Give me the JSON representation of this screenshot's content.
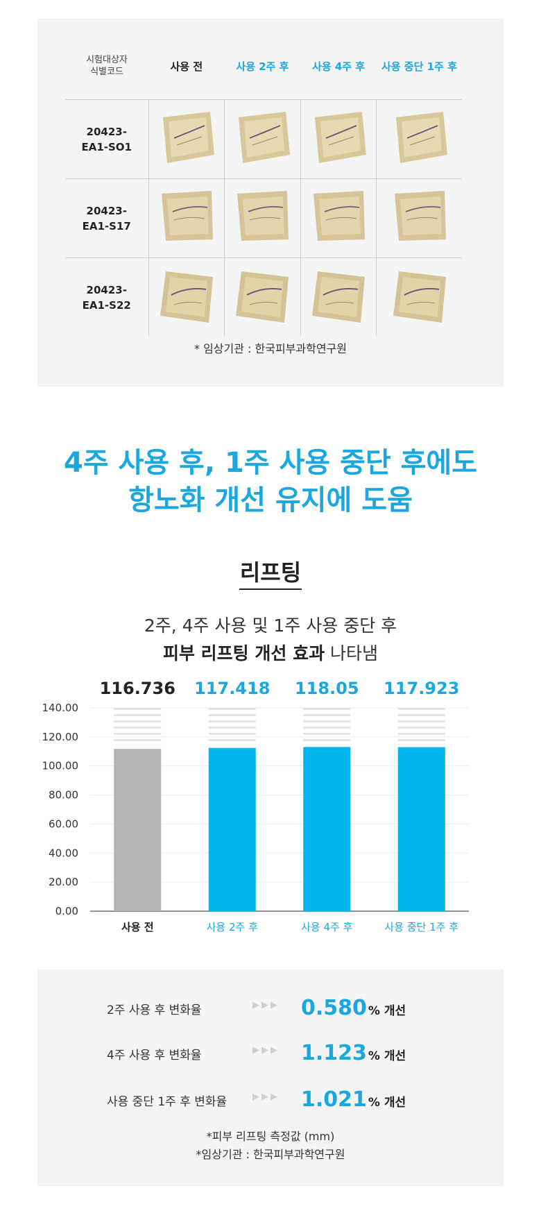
{
  "results_table": {
    "header_code": [
      "시험대상자",
      "식별코드"
    ],
    "columns": [
      "사용 전",
      "사용 2주 후",
      "사용 4주 후",
      "사용 중단 1주 후"
    ],
    "rows": [
      {
        "code": [
          "20423-",
          "EA1-SO1"
        ]
      },
      {
        "code": [
          "20423-",
          "EA1-S17"
        ]
      },
      {
        "code": [
          "20423-",
          "EA1-S22"
        ]
      }
    ],
    "footnote": "* 임상기관 : 한국피부과학연구원"
  },
  "headline": [
    "4주 사용 후, 1주 사용 중단 후에도",
    "항노화 개선 유지에 도움"
  ],
  "section": {
    "title": "리프팅",
    "subtitle_line1": "2주, 4주 사용 및 1주 사용 중단 후",
    "subtitle_bold": "피부 리프팅 개선 효과",
    "subtitle_rest": " 나타냄"
  },
  "chart_data": {
    "type": "bar",
    "categories": [
      "사용 전",
      "사용 2주 후",
      "사용 4주 후",
      "사용 중단 1주 후"
    ],
    "values": [
      116.736,
      117.418,
      118.05,
      117.923
    ],
    "value_labels": [
      "116.736",
      "117.418",
      "118.05",
      "117.923"
    ],
    "ylim": [
      0,
      140
    ],
    "yticks": [
      "0.00",
      "20.00",
      "40.00",
      "60.00",
      "80.00",
      "100.00",
      "120.00",
      "140.00"
    ],
    "colors": [
      "#b3b3b3",
      "#00b4ec",
      "#00b4ec",
      "#00b4ec"
    ],
    "label_colors": [
      "#222222",
      "#1aa7df",
      "#1aa7df",
      "#1aa7df"
    ]
  },
  "stats": [
    {
      "label": "2주 사용 후 변화율",
      "value": "0.580",
      "unit": "% 개선"
    },
    {
      "label": "4주 사용 후 변화율",
      "value": "1.123",
      "unit": "% 개선"
    },
    {
      "label": "사용 중단 1주 후 변화율",
      "value": "1.021",
      "unit": "% 개선"
    }
  ],
  "footnotes": [
    "*피부 리프팅 측정값 (mm)",
    "*임상기관 : 한국피부과학연구원"
  ]
}
